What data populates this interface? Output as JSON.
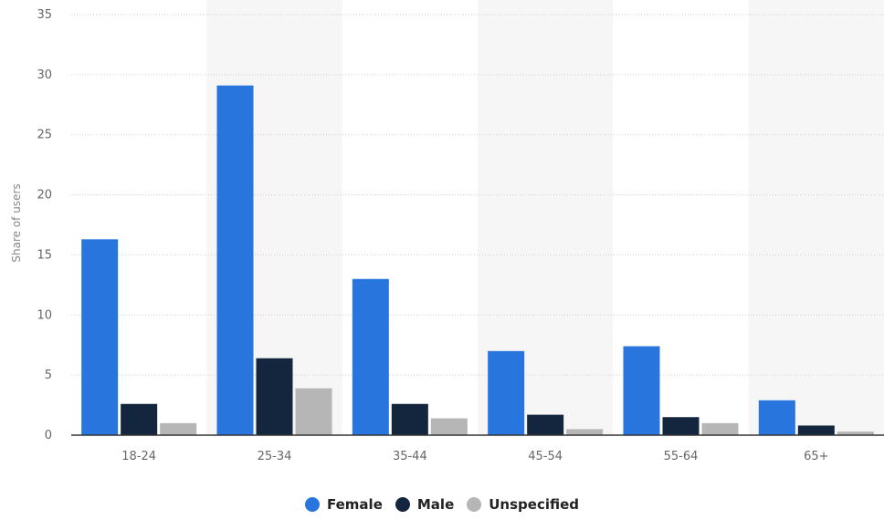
{
  "chart_data": {
    "type": "bar",
    "title": "",
    "xlabel": "",
    "ylabel": "Share of users",
    "ylim": [
      0,
      35
    ],
    "yticks": [
      0,
      5,
      10,
      15,
      20,
      25,
      30,
      35
    ],
    "grid": true,
    "legend_position": "bottom-center",
    "categories": [
      "18-24",
      "25-34",
      "35-44",
      "45-54",
      "55-64",
      "65+"
    ],
    "series": [
      {
        "name": "Female",
        "color": "#2876dd",
        "values": [
          16.3,
          29.1,
          13.0,
          7.0,
          7.4,
          2.9
        ]
      },
      {
        "name": "Male",
        "color": "#14263d",
        "values": [
          2.6,
          6.4,
          2.6,
          1.7,
          1.5,
          0.8
        ]
      },
      {
        "name": "Unspecified",
        "color": "#b6b6b6",
        "values": [
          1.0,
          3.9,
          1.4,
          0.5,
          1.0,
          0.3
        ]
      }
    ]
  }
}
